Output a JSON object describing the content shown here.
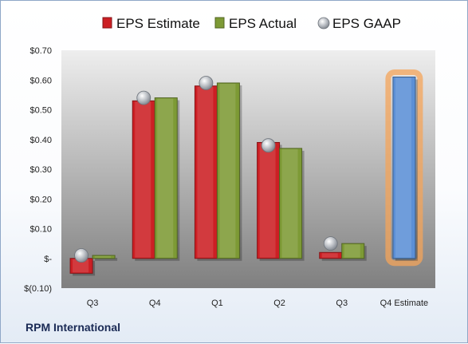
{
  "company": "RPM International",
  "chart_data": {
    "type": "bar",
    "categories": [
      "Q3",
      "Q4",
      "Q1",
      "Q2",
      "Q3",
      "Q4 Estimate"
    ],
    "series": [
      {
        "name": "EPS Estimate",
        "color": "#cc1f24",
        "values": [
          -0.05,
          0.53,
          0.58,
          0.39,
          0.02,
          null
        ]
      },
      {
        "name": "EPS Actual",
        "color": "#7d9a35",
        "values": [
          0.01,
          0.54,
          0.59,
          0.37,
          0.05,
          null
        ]
      },
      {
        "name": "EPS GAAP",
        "color": "#9ea3aa",
        "values": [
          0.01,
          0.54,
          0.59,
          0.38,
          0.05,
          null
        ]
      }
    ],
    "projection": {
      "category": "Q4 Estimate",
      "value": 0.61,
      "color": "#5b8fd6",
      "highlight": "#f4a45a"
    },
    "y_tick_labels": [
      "$(0.10)",
      "$-",
      "$0.10",
      "$0.20",
      "$0.30",
      "$0.40",
      "$0.50",
      "$0.60",
      "$0.70"
    ],
    "ylim": [
      -0.1,
      0.7
    ],
    "legend_position": "top",
    "grid": false
  }
}
